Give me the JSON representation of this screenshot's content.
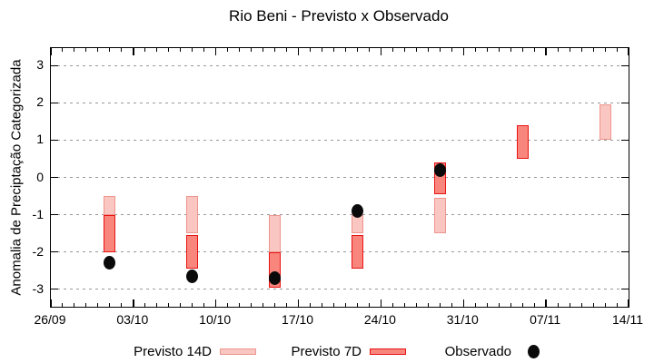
{
  "title": "Rio Beni - Previsto x Observado",
  "chart_data": {
    "type": "bar",
    "subtype": "range-bars-with-scatter-overlay",
    "title": "Rio Beni - Previsto x Observado",
    "xlabel": "",
    "ylabel": "Anomalia de Preciptação Categorizada",
    "ylim": [
      -3.47,
      3.47
    ],
    "yticks": [
      3,
      2,
      1,
      0,
      -1,
      -2,
      -3
    ],
    "grid": "dotted horizontal at integer y",
    "x_span_days": 49,
    "x_minor_tick_every_days": 1,
    "xticks": [
      {
        "day": 0,
        "label": "26/09"
      },
      {
        "day": 7,
        "label": "03/10"
      },
      {
        "day": 14,
        "label": "10/10"
      },
      {
        "day": 21,
        "label": "17/10"
      },
      {
        "day": 28,
        "label": "24/10"
      },
      {
        "day": 35,
        "label": "31/10"
      },
      {
        "day": 42,
        "label": "07/11"
      },
      {
        "day": 49,
        "label": "14/11"
      }
    ],
    "legend_position": "bottom",
    "colors": {
      "previsto14d_fill": "#f9c6c1",
      "previsto14d_border": "#ee958d",
      "previsto7d_fill": "#f8867d",
      "previsto7d_border": "#e81414",
      "observado": "#0a0a0a",
      "grid": "#999999"
    },
    "series": [
      {
        "name": "Previsto 14D",
        "type": "range-bar",
        "fill": "#f9c6c1",
        "border": "#ee958d",
        "points": [
          {
            "day": 5,
            "date": "01/10",
            "low": -1.0,
            "high": -0.5
          },
          {
            "day": 12,
            "date": "08/10",
            "low": -1.5,
            "high": -0.5
          },
          {
            "day": 19,
            "date": "15/10",
            "low": -2.0,
            "high": -1.0
          },
          {
            "day": 26,
            "date": "22/10",
            "low": -1.5,
            "high": -1.0
          },
          {
            "day": 33,
            "date": "29/10",
            "low": -1.5,
            "high": -0.55
          },
          {
            "day": 47,
            "date": "12/11",
            "low": 1.0,
            "high": 1.95
          }
        ]
      },
      {
        "name": "Previsto 7D",
        "type": "range-bar",
        "fill": "#f8867d",
        "border": "#e81414",
        "points": [
          {
            "day": 5,
            "date": "01/10",
            "low": -2.0,
            "high": -1.0
          },
          {
            "day": 12,
            "date": "08/10",
            "low": -2.45,
            "high": -1.55
          },
          {
            "day": 19,
            "date": "15/10",
            "low": -2.95,
            "high": -2.0
          },
          {
            "day": 26,
            "date": "22/10",
            "low": -2.45,
            "high": -1.55
          },
          {
            "day": 33,
            "date": "29/10",
            "low": -0.45,
            "high": 0.4
          },
          {
            "day": 40,
            "date": "05/11",
            "low": 0.5,
            "high": 1.4
          }
        ]
      },
      {
        "name": "Observado",
        "type": "scatter",
        "fill": "#0a0a0a",
        "points": [
          {
            "day": 5,
            "date": "01/10",
            "value": -2.3
          },
          {
            "day": 12,
            "date": "08/10",
            "value": -2.65
          },
          {
            "day": 19,
            "date": "15/10",
            "value": -2.7
          },
          {
            "day": 26,
            "date": "22/10",
            "value": -0.9
          },
          {
            "day": 33,
            "date": "29/10",
            "value": 0.2
          }
        ]
      }
    ]
  }
}
